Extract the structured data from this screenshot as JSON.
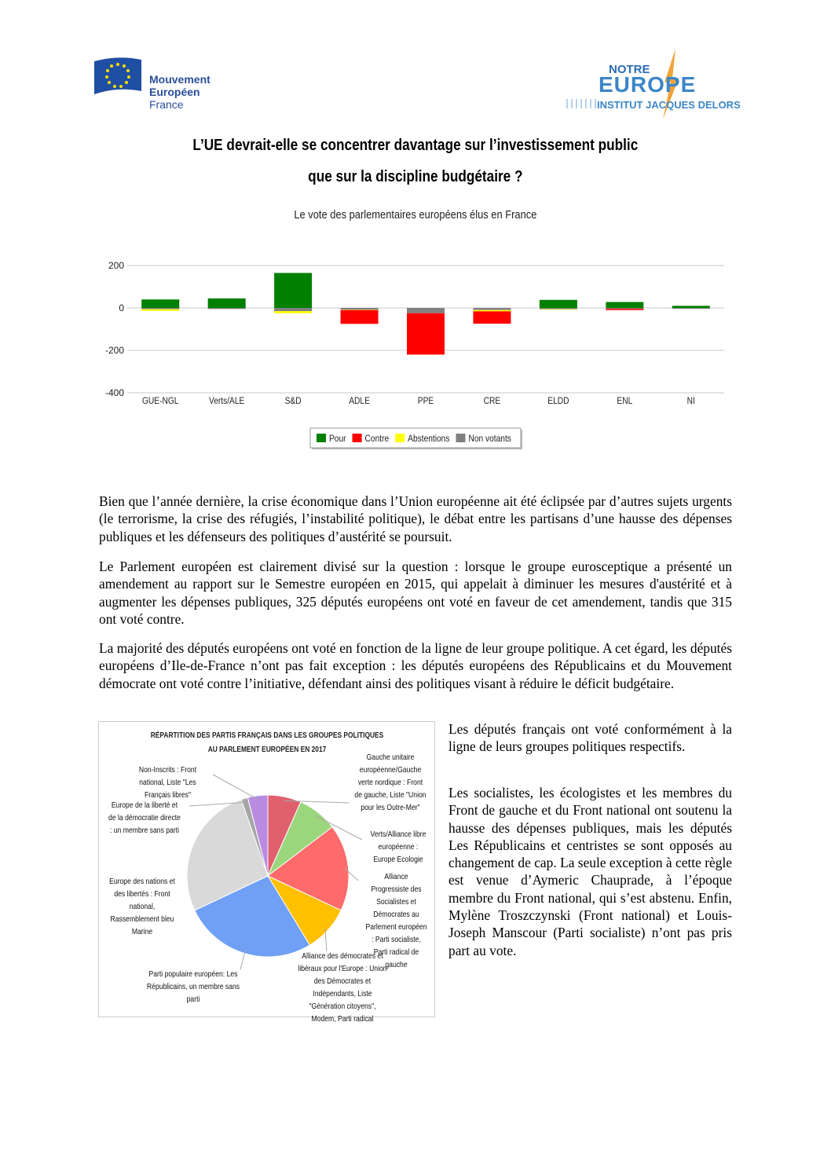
{
  "header": {
    "left_logo": [
      "Mouvement",
      "Européen",
      "France"
    ],
    "right_logo": [
      "NOTRE",
      "EUROPE",
      "INSTITUT JACQUES DELORS"
    ]
  },
  "title": [
    "L’UE devrait-elle se concentrer davantage sur l’investissement public",
    "que sur la discipline budgétaire ?"
  ],
  "chart_data": [
    {
      "type": "bar",
      "stacked": true,
      "subtitle": "Le vote des parlementaires européens élus en France",
      "categories": [
        "GUE-NGL",
        "Verts/ALE",
        "S&D",
        "ADLE",
        "PPE",
        "CRE",
        "ELDD",
        "ENL",
        "NI"
      ],
      "series": [
        {
          "name": "Pour",
          "color": "#008000",
          "values": [
            40,
            45,
            165,
            0,
            0,
            0,
            38,
            28,
            10
          ]
        },
        {
          "name": "Contre",
          "color": "#ff0000",
          "values": [
            0,
            0,
            0,
            -65,
            -195,
            -58,
            0,
            -6,
            0
          ]
        },
        {
          "name": "Abstentions",
          "color": "#ffff00",
          "values": [
            -8,
            0,
            -10,
            -2,
            0,
            -6,
            -2,
            0,
            0
          ]
        },
        {
          "name": "Non votants",
          "color": "#808080",
          "values": [
            -6,
            -5,
            -15,
            -8,
            -25,
            -10,
            -6,
            -4,
            -4
          ]
        }
      ],
      "ylim": [
        -400,
        200
      ],
      "yticks": [
        200,
        0,
        -200,
        -400
      ],
      "grid": true,
      "legend": "bottom"
    },
    {
      "type": "pie",
      "title": "RÉPARTITION DES PARTIS FRANÇAIS DANS LES GROUPES POLITIQUES AU PARLEMENT EUROPÉEN EN 2017",
      "categories": [
        "Gauche unitaire européenne/Gauche verte nordique : Front de gauche, Liste \"Union pour les Outre-Mer\"",
        "Verts/Alliance libre européenne : Europe Ecologie",
        "Alliance Progressiste des Socialistes et Démocrates au Parlement européen : Parti socialiste, Parti radical de gauche",
        "Alliance des démocrates et libéraux pour l'Europe : Union des Démocrates et Indépendants, Liste \"Génération citoyens\", Modem, Parti radical",
        "Parti populaire européen: Les Républicains, un membre sans parti",
        "Europe des nations et des libertés : Front national, Rassemblement bleu Marine",
        "Europe de la liberté et de la démocratie directe : un membre sans parti",
        "Non-Inscrits : Front national, Liste \"Les Français libres\""
      ],
      "values": [
        5,
        6,
        13,
        7,
        20,
        20,
        1,
        3
      ],
      "colors": [
        "#e0606e",
        "#9bd67c",
        "#ff6b6b",
        "#ffc000",
        "#6fa0f5",
        "#d9d9d9",
        "#a6a6a6",
        "#b98be0"
      ]
    }
  ],
  "paragraphs": [
    "Bien que l’année dernière, la crise économique dans l’Union européenne ait été éclipsée par d’autres sujets urgents (le terrorisme, la crise des réfugiés, l’instabilité politique), le débat entre les partisans d’une hausse des dépenses publiques et les défenseurs des politiques d’austérité se poursuit.",
    "Le Parlement européen est clairement divisé sur la question : lorsque le groupe eurosceptique a présenté un amendement au rapport sur le Semestre européen en 2015, qui appelait à diminuer les mesures d'austérité et à augmenter les dépenses publiques, 325 députés européens ont voté en faveur de cet amendement, tandis que 315 ont voté contre.",
    "La majorité des députés européens ont voté en fonction de la ligne de leur groupe politique. A cet égard, les députés européens d’Ile-de-France n’ont pas fait exception : les députés européens des Républicains et du Mouvement démocrate ont voté contre l’initiative, défendant ainsi des politiques visant à réduire le déficit budgétaire."
  ],
  "side_paragraphs": [
    "Les députés français ont voté conformément à la ligne de leurs groupes politiques respectifs.",
    "Les socialistes, les écologistes et les membres du Front de gauche et du Front national ont soutenu la hausse des dépenses publiques, mais les députés Les Républicains et centristes se sont opposés au changement de cap. La seule exception à cette règle est venue d’Aymeric Chauprade, à l’époque membre du Front national, qui s’est abstenu. Enfin, Mylène Troszczynski (Front national) et Louis-Joseph Manscour (Parti socialiste) n’ont pas pris part au vote."
  ]
}
